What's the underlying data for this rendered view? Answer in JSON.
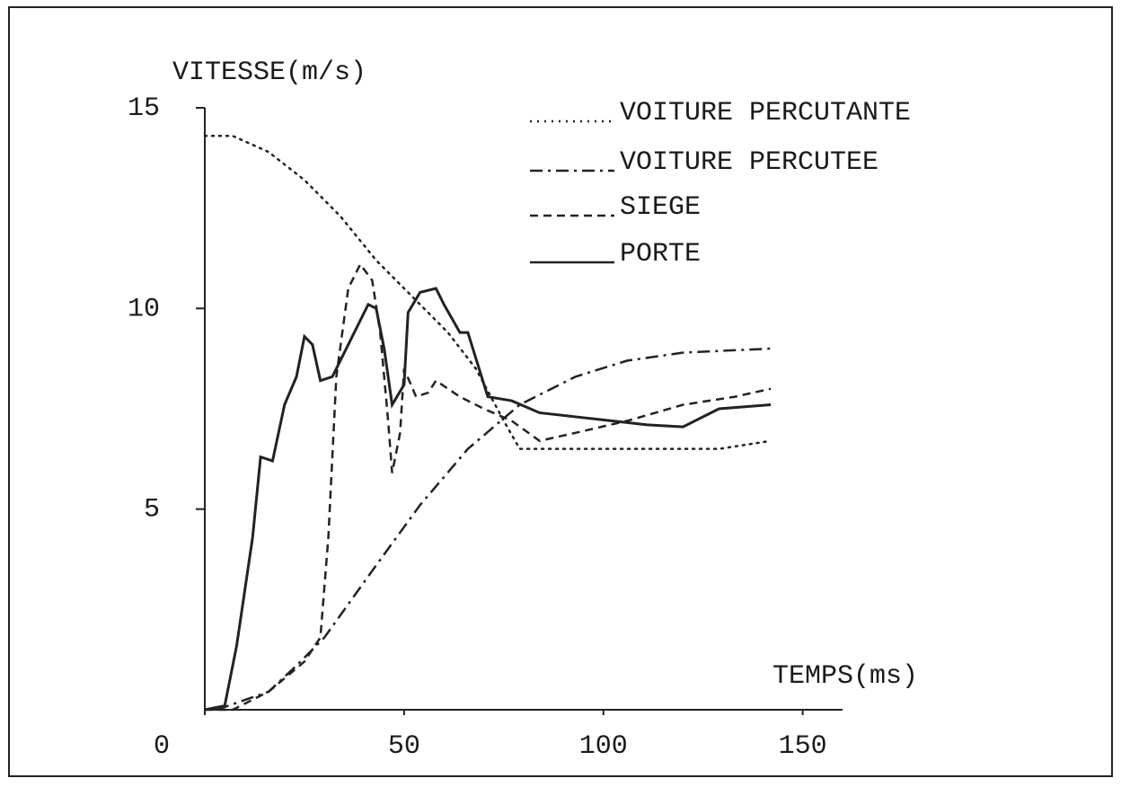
{
  "chart_data": {
    "type": "line",
    "y_label": "VITESSE(m/s)",
    "x_label": "TEMPS(ms)",
    "xlim": [
      0,
      160
    ],
    "ylim": [
      0,
      15
    ],
    "xticks": [
      0,
      50,
      100,
      150
    ],
    "yticks": [
      5,
      10,
      15
    ],
    "legend": "top-right",
    "series": [
      {
        "name": "VOITURE PERCUTANTE",
        "color": "#222222",
        "style": "dotted",
        "x": [
          0,
          7,
          16,
          25,
          34,
          43,
          52,
          61,
          68,
          75,
          79,
          84,
          93,
          106,
          129,
          142
        ],
        "values": [
          14.3,
          14.3,
          13.9,
          13.2,
          12.3,
          11.2,
          10.3,
          9.4,
          8.5,
          7.2,
          6.5,
          6.5,
          6.5,
          6.5,
          6.5,
          6.7
        ]
      },
      {
        "name": "VOITURE PERCUTEE",
        "color": "#222222",
        "style": "dashdot",
        "x": [
          3,
          16,
          23,
          30,
          43,
          54,
          66,
          79,
          93,
          106,
          120,
          142
        ],
        "values": [
          0,
          0.45,
          1.1,
          1.8,
          3.6,
          5.1,
          6.5,
          7.6,
          8.3,
          8.7,
          8.9,
          9.0
        ]
      },
      {
        "name": "SIEGE",
        "color": "#222222",
        "style": "dashed",
        "x": [
          0,
          7,
          16,
          25,
          29,
          31,
          33,
          36,
          39,
          42,
          44,
          46,
          47,
          49,
          50,
          53,
          56,
          58,
          64,
          70,
          77,
          84,
          93,
          106,
          120,
          133,
          142
        ],
        "values": [
          0,
          0,
          0.45,
          1.2,
          1.8,
          4.3,
          8.3,
          10.5,
          11.1,
          10.7,
          9.4,
          7.2,
          5.9,
          6.9,
          8.5,
          7.8,
          7.9,
          8.2,
          7.8,
          7.5,
          7.2,
          6.7,
          6.9,
          7.2,
          7.6,
          7.8,
          8.0
        ]
      },
      {
        "name": "PORTE",
        "color": "#222222",
        "style": "solid",
        "x": [
          0,
          5,
          8,
          12,
          14,
          17,
          20,
          23,
          25,
          27,
          29,
          32,
          36,
          41,
          43,
          45,
          47,
          50,
          51,
          54,
          58,
          60,
          64,
          66,
          71,
          77,
          84,
          93,
          102,
          111,
          120,
          129,
          142
        ],
        "values": [
          0,
          0.1,
          1.6,
          4.3,
          6.3,
          6.2,
          7.6,
          8.3,
          9.3,
          9.1,
          8.2,
          8.3,
          9.1,
          10.1,
          10.0,
          9.0,
          7.6,
          8.1,
          9.9,
          10.4,
          10.5,
          10.1,
          9.4,
          9.4,
          7.8,
          7.7,
          7.4,
          7.3,
          7.2,
          7.1,
          7.05,
          7.5,
          7.6
        ]
      }
    ]
  }
}
